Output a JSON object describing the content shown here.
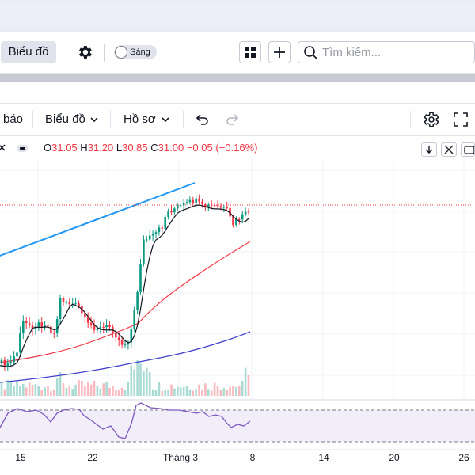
{
  "toolbar": {
    "chart_button_label": "Biểu đồ",
    "theme_toggle_label": "Sáng",
    "search_placeholder": "Tìm kiếm..."
  },
  "tabs": [
    {
      "label": "báo"
    },
    {
      "label": "Biểu đồ"
    },
    {
      "label": "Hồ sơ"
    }
  ],
  "legend": {
    "open_key": "O",
    "open": "31.05",
    "high_key": "H",
    "high": "31.20",
    "low_key": "L",
    "low": "30.85",
    "close_key": "C",
    "close": "31.00",
    "change": "−0.05 (−0.16%)"
  },
  "chart_data": {
    "type": "candlestick",
    "x_tick_labels": [
      "15",
      "22",
      "Tháng 3",
      "8",
      "14",
      "20",
      "26"
    ],
    "last_close": 31.0,
    "indicators": [
      "MA short (black)",
      "MA mid (red)",
      "MA long (purple)",
      "volume",
      "RSI"
    ],
    "colors": {
      "up": "#089981",
      "down": "#f23645",
      "trendline": "#2196f3",
      "ma_short": "#131722",
      "ma_mid": "#f23645",
      "ma_long": "#3f3fcf",
      "rsi": "#7e57c2"
    }
  }
}
